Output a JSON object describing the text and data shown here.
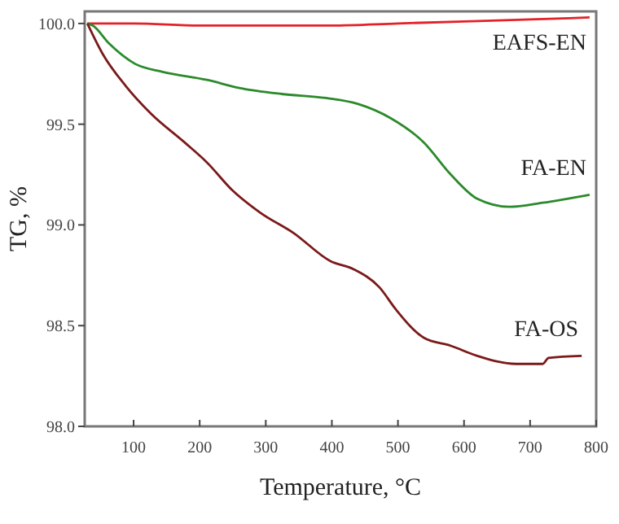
{
  "chart_data": {
    "type": "line",
    "xlabel": "Temperature, °C",
    "ylabel": "TG, %",
    "xlim": [
      26,
      800
    ],
    "ylim": [
      98,
      100.06
    ],
    "xticks": [
      100,
      200,
      300,
      400,
      500,
      600,
      700,
      800
    ],
    "yticks": [
      {
        "value": 98,
        "label": "98.0"
      },
      98.5,
      {
        "value": 99,
        "label": "99.0"
      },
      99.5,
      {
        "value": 100,
        "label": "100.0"
      }
    ],
    "grid": false,
    "marker": "none",
    "line_style": "solid",
    "series": [
      {
        "name": "EAFS-EN",
        "color": "#e32227",
        "x": [
          30,
          100,
          200,
          300,
          400,
          500,
          600,
          700,
          790
        ],
        "values": [
          100,
          100,
          99.99,
          99.99,
          99.99,
          100,
          100.01,
          100.02,
          100.03
        ]
      },
      {
        "name": "FA-EN",
        "color": "#2b8a2b",
        "x": [
          30,
          38,
          63,
          102,
          144,
          211,
          260,
          324,
          391,
          440,
          489,
          539,
          580,
          620,
          669,
          719,
          790
        ],
        "values": [
          100,
          99.99,
          99.9,
          99.8,
          99.76,
          99.72,
          99.68,
          99.65,
          99.63,
          99.6,
          99.53,
          99.41,
          99.25,
          99.13,
          99.09,
          99.11,
          99.15
        ]
      },
      {
        "name": "FA-OS",
        "color": "#7b1a1a",
        "x": [
          30,
          53,
          88,
          127,
          177,
          211,
          250,
          292,
          342,
          398,
          433,
          472,
          497,
          539,
          580,
          620,
          679,
          719,
          728,
          778
        ],
        "values": [
          100,
          99.85,
          99.69,
          99.55,
          99.41,
          99.31,
          99.17,
          99.06,
          98.96,
          98.82,
          98.78,
          98.69,
          98.58,
          98.44,
          98.4,
          98.35,
          98.31,
          98.31,
          98.34,
          98.35
        ]
      }
    ]
  }
}
